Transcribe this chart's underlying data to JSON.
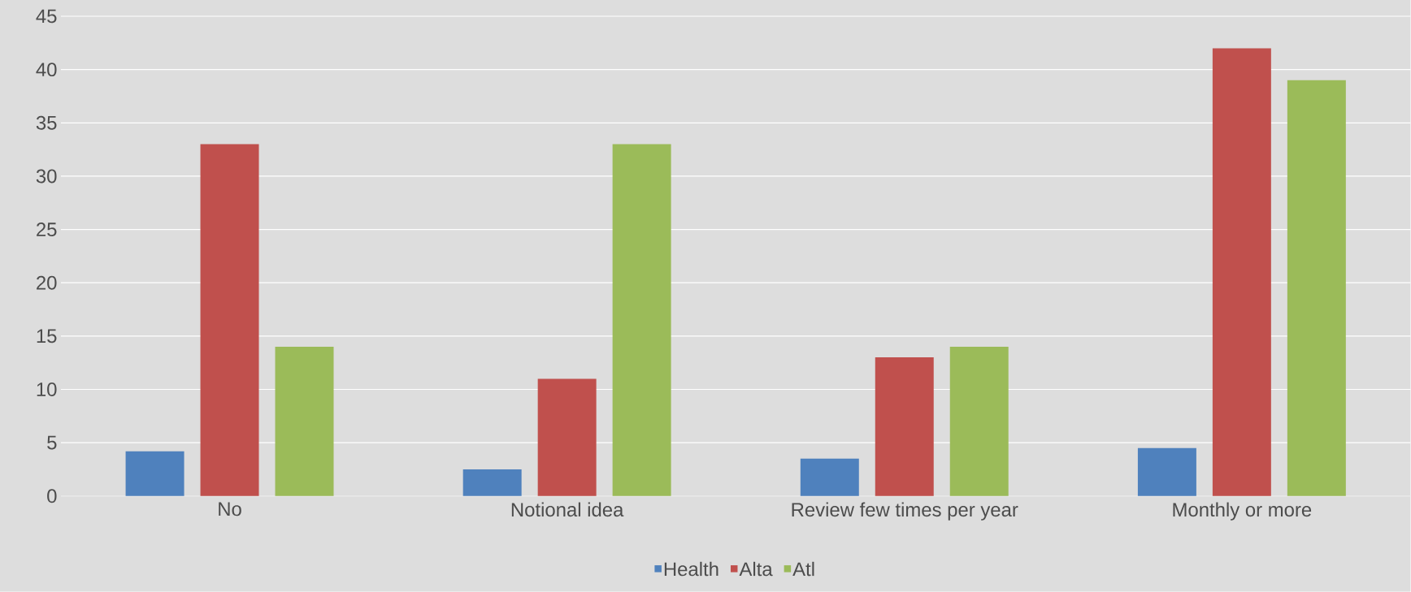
{
  "chart_data": {
    "type": "bar",
    "categories": [
      "No",
      "Notional idea",
      "Review few times per year",
      "Monthly or more"
    ],
    "series": [
      {
        "name": "Health",
        "color": "#4f81bd",
        "values": [
          4.2,
          2.5,
          3.5,
          4.5
        ]
      },
      {
        "name": "Alta",
        "color": "#c0504d",
        "values": [
          33,
          11,
          13,
          42
        ]
      },
      {
        "name": "Atl",
        "color": "#9bbb59",
        "values": [
          14,
          33,
          14,
          39
        ]
      }
    ],
    "ylim": [
      0,
      45
    ],
    "yticks": [
      0,
      5,
      10,
      15,
      20,
      25,
      30,
      35,
      40,
      45
    ],
    "grid": "y",
    "legend": "bottom"
  }
}
